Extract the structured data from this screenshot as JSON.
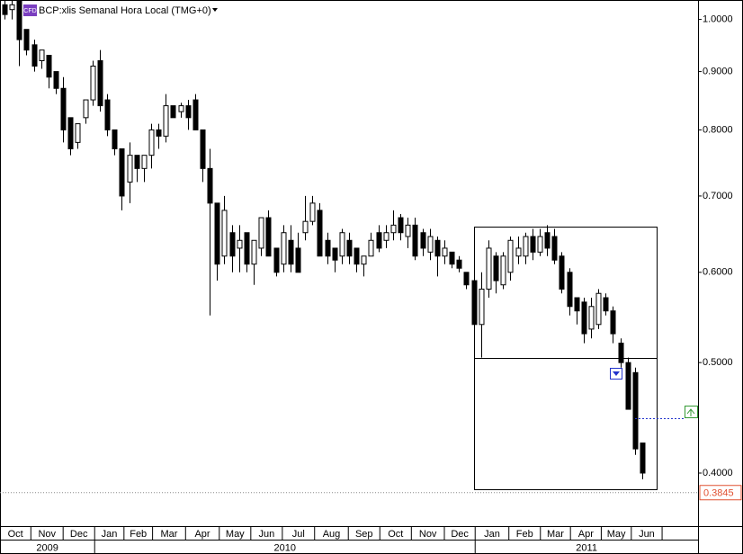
{
  "chart_data": {
    "type": "candlestick",
    "title": "BCP:xlis Semanal Hora Local (TMG+0)",
    "badge": "CFD",
    "up_color": "#ffffff",
    "down_color": "#000000",
    "log_scale": true,
    "open": [
      1.03,
      1.02,
      1.04,
      0.98,
      0.95,
      0.92,
      0.93,
      0.9,
      0.87,
      0.82,
      0.78,
      0.82,
      0.85,
      0.92,
      0.85,
      0.8,
      0.77,
      0.72,
      0.76,
      0.74,
      0.76,
      0.8,
      0.79,
      0.84,
      0.83,
      0.84,
      0.85,
      0.8,
      0.74,
      0.69,
      0.62,
      0.65,
      0.63,
      0.65,
      0.61,
      0.63,
      0.67,
      0.63,
      0.61,
      0.64,
      0.63,
      0.65,
      0.665,
      0.68,
      0.64,
      0.63,
      0.62,
      0.64,
      0.63,
      0.61,
      0.62,
      0.65,
      0.64,
      0.65,
      0.67,
      0.645,
      0.66,
      0.65,
      0.625,
      0.64,
      0.62,
      0.625,
      0.615,
      0.6,
      0.59,
      0.54,
      0.58,
      0.62,
      0.585,
      0.6,
      0.62,
      0.62,
      0.645,
      0.625,
      0.65,
      0.645,
      0.62,
      0.6,
      0.57,
      0.565,
      0.535,
      0.54,
      0.57,
      0.555,
      0.52,
      0.5,
      0.49,
      0.425
    ],
    "high": [
      1.04,
      1.04,
      1.04,
      0.98,
      0.96,
      0.94,
      0.93,
      0.9,
      0.89,
      0.82,
      0.81,
      0.85,
      0.92,
      0.94,
      0.86,
      0.8,
      0.77,
      0.78,
      0.76,
      0.76,
      0.81,
      0.81,
      0.86,
      0.84,
      0.845,
      0.85,
      0.86,
      0.8,
      0.77,
      0.69,
      0.7,
      0.66,
      0.66,
      0.65,
      0.64,
      0.67,
      0.68,
      0.63,
      0.66,
      0.66,
      0.65,
      0.7,
      0.7,
      0.69,
      0.65,
      0.63,
      0.655,
      0.65,
      0.63,
      0.62,
      0.65,
      0.66,
      0.66,
      0.68,
      0.675,
      0.67,
      0.67,
      0.655,
      0.655,
      0.645,
      0.64,
      0.625,
      0.62,
      0.6,
      0.6,
      0.6,
      0.64,
      0.625,
      0.625,
      0.645,
      0.645,
      0.65,
      0.655,
      0.655,
      0.66,
      0.655,
      0.625,
      0.605,
      0.57,
      0.57,
      0.57,
      0.58,
      0.575,
      0.56,
      0.525,
      0.505,
      0.495,
      0.425
    ],
    "low": [
      1.0,
      1.0,
      0.91,
      0.93,
      0.9,
      0.905,
      0.87,
      0.86,
      0.78,
      0.76,
      0.77,
      0.81,
      0.84,
      0.83,
      0.79,
      0.76,
      0.68,
      0.69,
      0.72,
      0.72,
      0.74,
      0.77,
      0.78,
      0.82,
      0.82,
      0.8,
      0.8,
      0.72,
      0.55,
      0.59,
      0.61,
      0.6,
      0.6,
      0.6,
      0.585,
      0.62,
      0.62,
      0.595,
      0.6,
      0.6,
      0.6,
      0.64,
      0.66,
      0.62,
      0.61,
      0.6,
      0.61,
      0.61,
      0.6,
      0.595,
      0.62,
      0.625,
      0.63,
      0.64,
      0.64,
      0.63,
      0.615,
      0.62,
      0.615,
      0.595,
      0.61,
      0.605,
      0.6,
      0.58,
      0.535,
      0.505,
      0.57,
      0.575,
      0.58,
      0.59,
      0.61,
      0.61,
      0.615,
      0.62,
      0.62,
      0.61,
      0.575,
      0.55,
      0.54,
      0.52,
      0.525,
      0.535,
      0.55,
      0.52,
      0.495,
      0.455,
      0.415,
      0.395
    ],
    "close": [
      1.01,
      1.03,
      0.96,
      0.94,
      0.91,
      0.94,
      0.89,
      0.87,
      0.8,
      0.77,
      0.81,
      0.85,
      0.91,
      0.84,
      0.8,
      0.77,
      0.7,
      0.76,
      0.74,
      0.76,
      0.8,
      0.79,
      0.84,
      0.82,
      0.84,
      0.82,
      0.8,
      0.74,
      0.69,
      0.61,
      0.68,
      0.62,
      0.64,
      0.61,
      0.64,
      0.67,
      0.62,
      0.6,
      0.65,
      0.61,
      0.6,
      0.665,
      0.69,
      0.62,
      0.62,
      0.615,
      0.65,
      0.62,
      0.61,
      0.62,
      0.64,
      0.63,
      0.65,
      0.66,
      0.65,
      0.66,
      0.62,
      0.63,
      0.645,
      0.62,
      0.63,
      0.61,
      0.605,
      0.585,
      0.54,
      0.58,
      0.63,
      0.59,
      0.62,
      0.64,
      0.63,
      0.645,
      0.625,
      0.645,
      0.63,
      0.615,
      0.58,
      0.56,
      0.555,
      0.53,
      0.56,
      0.575,
      0.555,
      0.53,
      0.5,
      0.455,
      0.42,
      0.4
    ],
    "xlim": [
      -0.61,
      94.6
    ],
    "ylim": [
      0.36,
      1.04
    ],
    "yticks": [
      {
        "value": 0.4,
        "label": "0.4000"
      },
      {
        "value": 0.5,
        "label": "0.5000"
      },
      {
        "value": 0.6,
        "label": "0.6000"
      },
      {
        "value": 0.7,
        "label": "0.7000"
      },
      {
        "value": 0.8,
        "label": "0.8000"
      },
      {
        "value": 0.9,
        "label": "0.9000"
      },
      {
        "value": 1.0,
        "label": "1.0000"
      }
    ],
    "xticks": [
      {
        "value": -0.61,
        "label": "Oct"
      },
      {
        "value": 3.6,
        "label": "Nov"
      },
      {
        "value": 8.0,
        "label": "Dec"
      },
      {
        "value": 12.3,
        "label": "Jan"
      },
      {
        "value": 16.3,
        "label": "Feb"
      },
      {
        "value": 20.2,
        "label": "Mar"
      },
      {
        "value": 24.7,
        "label": "Apr"
      },
      {
        "value": 29.3,
        "label": "May"
      },
      {
        "value": 33.6,
        "label": "Jun"
      },
      {
        "value": 37.9,
        "label": "Jul"
      },
      {
        "value": 42.3,
        "label": "Aug"
      },
      {
        "value": 46.9,
        "label": "Sep"
      },
      {
        "value": 51.2,
        "label": "Oct"
      },
      {
        "value": 55.5,
        "label": "Nov"
      },
      {
        "value": 60.0,
        "label": "Dec"
      },
      {
        "value": 64.2,
        "label": "Jan"
      },
      {
        "value": 68.8,
        "label": "Feb"
      },
      {
        "value": 73.1,
        "label": "Mar"
      },
      {
        "value": 77.2,
        "label": "Apr"
      },
      {
        "value": 81.4,
        "label": "May"
      },
      {
        "value": 85.5,
        "label": "Jun"
      },
      {
        "value": 89.7,
        "label": null
      }
    ],
    "year_ticks": [
      {
        "value": -0.61,
        "label": "2009"
      },
      {
        "value": 12.3,
        "label": "2010"
      },
      {
        "value": 64.2,
        "label": "2011"
      }
    ],
    "price_line": {
      "value": 0.3845,
      "label": "0.3845"
    }
  }
}
